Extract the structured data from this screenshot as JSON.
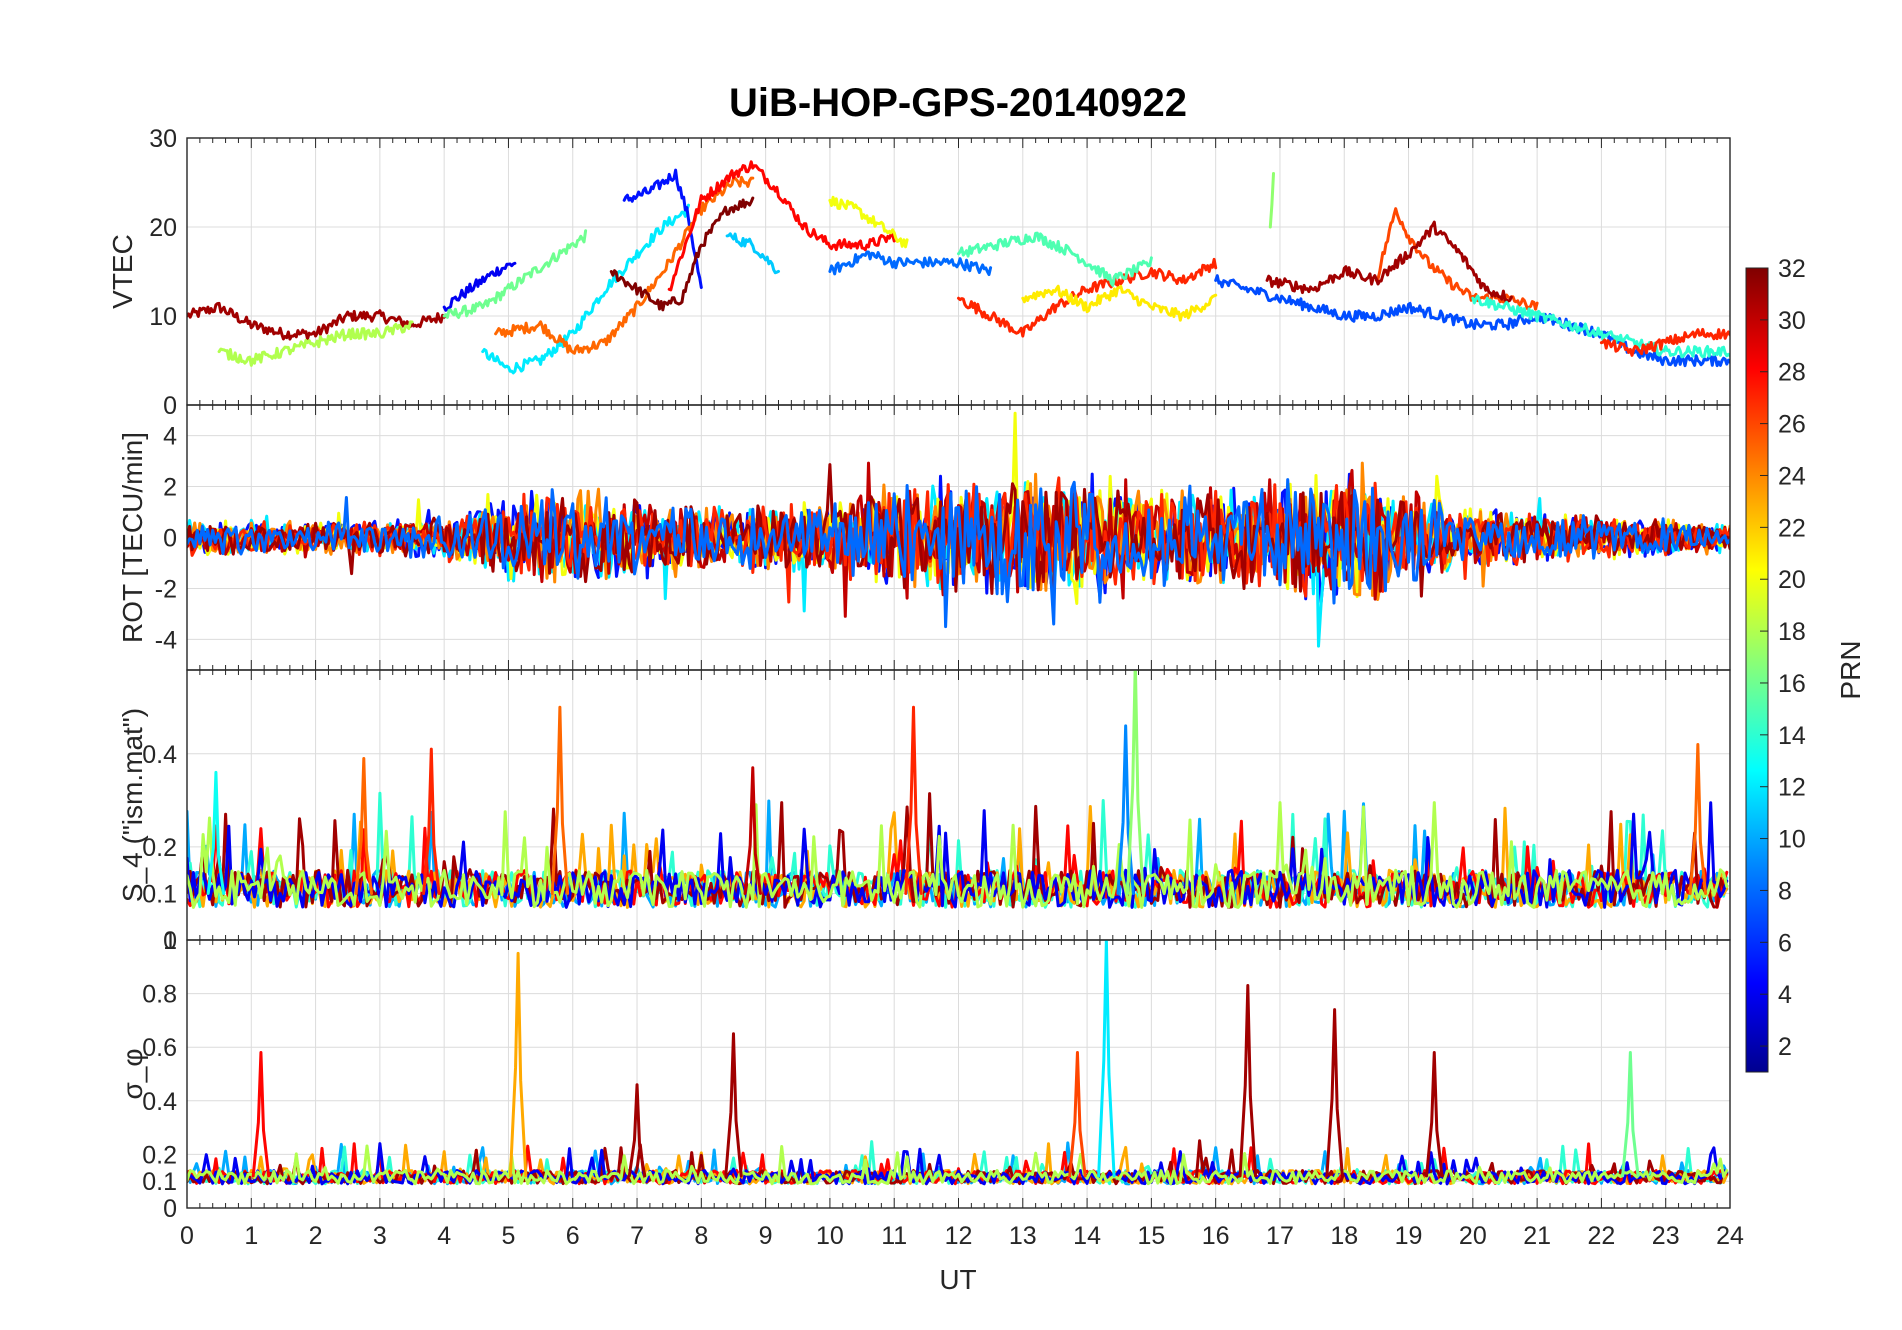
{
  "chart_data": {
    "type": "line",
    "title": "UiB-HOP-GPS-20140922",
    "xlabel": "UT",
    "x_range": [
      0,
      24
    ],
    "x_ticks": [
      "0",
      "1",
      "2",
      "3",
      "4",
      "5",
      "6",
      "7",
      "8",
      "9",
      "10",
      "11",
      "12",
      "13",
      "14",
      "15",
      "16",
      "17",
      "18",
      "19",
      "20",
      "21",
      "22",
      "23",
      "24"
    ],
    "grid": true,
    "colorbar": {
      "label": "PRN",
      "range": [
        1,
        32
      ],
      "colormap": "jet",
      "ticks": [
        "2",
        "4",
        "6",
        "8",
        "10",
        "12",
        "14",
        "16",
        "18",
        "20",
        "22",
        "24",
        "26",
        "28",
        "30",
        "32"
      ],
      "colors": [
        "#00008f",
        "#0000ff",
        "#0080ff",
        "#00ffff",
        "#80ff80",
        "#ffff00",
        "#ff8000",
        "#ff0000",
        "#800000"
      ]
    },
    "panels": [
      {
        "id": "vtec",
        "ylabel": "VTEC",
        "ylim": [
          0,
          30
        ],
        "y_ticks": [
          "0",
          "10",
          "20",
          "30"
        ],
        "series": [
          {
            "prn": 31,
            "x": [
              0,
              0.5,
              1,
              1.5,
              2,
              2.5,
              3,
              3.5,
              4
            ],
            "y": [
              10,
              11,
              9,
              8,
              8,
              10,
              10,
              9,
              10
            ]
          },
          {
            "prn": 4,
            "x": [
              4,
              4.4,
              4.8,
              5.1
            ],
            "y": [
              11,
              13,
              15,
              16
            ]
          },
          {
            "prn": 16,
            "x": [
              4,
              4.6,
              5.2,
              5.8,
              6.2
            ],
            "y": [
              10,
              11,
              14,
              17,
              19
            ]
          },
          {
            "prn": 12,
            "x": [
              4.6,
              5,
              5.5,
              6,
              6.5,
              7,
              7.4,
              7.8
            ],
            "y": [
              6,
              4,
              5,
              8,
              13,
              17,
              20,
              22
            ]
          },
          {
            "prn": 5,
            "x": [
              6.8,
              7.2,
              7.6,
              7.8,
              8
            ],
            "y": [
              23,
              24,
              26,
              21,
              13
            ]
          },
          {
            "prn": 25,
            "x": [
              4.8,
              5.5,
              6,
              6.5,
              7,
              7.5,
              8,
              8.5,
              8.8
            ],
            "y": [
              8,
              9,
              6,
              7,
              11,
              16,
              22,
              25,
              25
            ]
          },
          {
            "prn": 32,
            "x": [
              6.6,
              7,
              7.4,
              7.7,
              8,
              8.4,
              8.8
            ],
            "y": [
              15,
              13,
              11,
              12,
              18,
              22,
              23
            ]
          },
          {
            "prn": 28,
            "x": [
              7.5,
              8,
              8.5,
              8.8,
              9.2,
              9.6,
              10,
              10.6,
              11
            ],
            "y": [
              13,
              23,
              26,
              27,
              24,
              20,
              18,
              18,
              19
            ]
          },
          {
            "prn": 11,
            "x": [
              8.4,
              8.8,
              9.2
            ],
            "y": [
              19,
              18,
              15
            ]
          },
          {
            "prn": 20,
            "x": [
              10,
              10.4,
              10.8,
              11.2
            ],
            "y": [
              23,
              22,
              20,
              18
            ]
          },
          {
            "prn": 8,
            "x": [
              10,
              10.6,
              11,
              11.5,
              12,
              12.5
            ],
            "y": [
              15,
              17,
              16,
              16,
              16,
              15
            ]
          },
          {
            "prn": 27,
            "x": [
              12,
              12.5,
              13,
              13.5,
              14,
              14.5,
              15,
              15.5,
              16
            ],
            "y": [
              12,
              10,
              8,
              11,
              13,
              14,
              15,
              14,
              16
            ]
          },
          {
            "prn": 15,
            "x": [
              12,
              12.6,
              13.2,
              13.8,
              14.4,
              15
            ],
            "y": [
              17,
              18,
              19,
              17,
              14,
              16
            ]
          },
          {
            "prn": 21,
            "x": [
              13,
              13.5,
              14,
              14.5,
              15,
              15.5,
              16
            ],
            "y": [
              12,
              13,
              11,
              13,
              11,
              10,
              12
            ]
          },
          {
            "prn": 17,
            "x": [
              16.85,
              16.9
            ],
            "y": [
              20,
              26
            ]
          },
          {
            "prn": 7,
            "x": [
              16,
              16.5,
              17,
              17.5,
              18,
              18.5,
              19,
              19.5,
              20,
              20.5,
              21,
              21.5,
              22,
              22.5,
              23,
              23.5,
              24
            ],
            "y": [
              14,
              13,
              12,
              11,
              10,
              10,
              11,
              10,
              9,
              9,
              10,
              9,
              8,
              6,
              5,
              5,
              5
            ]
          },
          {
            "prn": 26,
            "x": [
              18.5,
              18.8,
              19,
              19.3,
              19.6,
              20,
              20.5,
              21
            ],
            "y": [
              14,
              22,
              19,
              16,
              14,
              12,
              12,
              11
            ]
          },
          {
            "prn": 31,
            "x": [
              16.8,
              17.5,
              18,
              18.5,
              19,
              19.4,
              19.8,
              20.2,
              20.6
            ],
            "y": [
              14,
              13,
              15,
              14,
              17,
              20,
              17,
              13,
              12
            ]
          },
          {
            "prn": 14,
            "x": [
              20,
              20.5,
              21,
              21.5,
              22,
              22.5,
              23,
              23.5,
              24
            ],
            "y": [
              12,
              11,
              10,
              9,
              8,
              7,
              6,
              6,
              6
            ]
          },
          {
            "prn": 27,
            "x": [
              22,
              22.5,
              23,
              23.5,
              24
            ],
            "y": [
              7,
              6,
              7,
              8,
              8
            ]
          },
          {
            "prn": 18,
            "x": [
              0.5,
              1,
              1.5,
              2,
              2.5,
              3,
              3.5
            ],
            "y": [
              6,
              5,
              6,
              7,
              8,
              8,
              9
            ]
          }
        ]
      },
      {
        "id": "rot",
        "ylabel": "ROT [TECU/min]",
        "ylim": [
          -5.2,
          5.2
        ],
        "y_ticks": [
          "-4",
          "-2",
          "0",
          "2",
          "4"
        ],
        "series_note": "Rate of TEC per satellite; dense oscillations about 0 with spikes up to ±5 between 4–19 UT",
        "noise_profile": {
          "x": [
            0,
            2,
            4,
            5,
            6,
            8,
            10,
            11,
            12,
            13,
            14,
            15,
            16,
            17,
            18,
            19,
            20,
            22,
            24
          ],
          "amplitude": [
            0.7,
            0.6,
            0.9,
            1.6,
            1.8,
            1.2,
            1.4,
            2.2,
            2.4,
            2.4,
            2.6,
            2.0,
            1.8,
            2.4,
            2.8,
            2.0,
            1.2,
            0.8,
            0.6
          ]
        }
      },
      {
        "id": "s4",
        "ylabel": "S_4 (\"ism.mat\")",
        "ylim": [
          0,
          0.58
        ],
        "y_ticks": [
          "0",
          "0.1",
          "0.2",
          "0.4"
        ],
        "series_note": "Amplitude scintillation index; baseline ~0.07–0.12 with bursts to 0.3–0.5",
        "peaks": [
          {
            "prn": 13,
            "x": 0.45,
            "y": 0.36
          },
          {
            "prn": 25,
            "x": 2.75,
            "y": 0.39
          },
          {
            "prn": 27,
            "x": 3.8,
            "y": 0.41
          },
          {
            "prn": 25,
            "x": 5.8,
            "y": 0.5
          },
          {
            "prn": 30,
            "x": 8.8,
            "y": 0.37
          },
          {
            "prn": 27,
            "x": 11.3,
            "y": 0.5
          },
          {
            "prn": 9,
            "x": 14.6,
            "y": 0.46
          },
          {
            "prn": 17,
            "x": 14.75,
            "y": 0.6
          },
          {
            "prn": 25,
            "x": 23.5,
            "y": 0.42
          }
        ]
      },
      {
        "id": "sigphi",
        "ylabel": "σ_φ",
        "ylim": [
          0,
          1
        ],
        "y_ticks": [
          "0",
          "0.1",
          "0.2",
          "0.4",
          "0.6",
          "0.8",
          "1"
        ],
        "series_note": "Phase scintillation index; baseline ~0.08–0.15 with spikes",
        "peaks": [
          {
            "prn": 28,
            "x": 1.15,
            "y": 0.58
          },
          {
            "prn": 23,
            "x": 5.15,
            "y": 0.95
          },
          {
            "prn": 31,
            "x": 7.0,
            "y": 0.46
          },
          {
            "prn": 31,
            "x": 8.5,
            "y": 0.65
          },
          {
            "prn": 26,
            "x": 13.85,
            "y": 0.58
          },
          {
            "prn": 12,
            "x": 14.3,
            "y": 1.0
          },
          {
            "prn": 31,
            "x": 16.5,
            "y": 0.83
          },
          {
            "prn": 31,
            "x": 17.85,
            "y": 0.74
          },
          {
            "prn": 31,
            "x": 19.4,
            "y": 0.58
          },
          {
            "prn": 16,
            "x": 22.45,
            "y": 0.58
          }
        ]
      }
    ]
  }
}
